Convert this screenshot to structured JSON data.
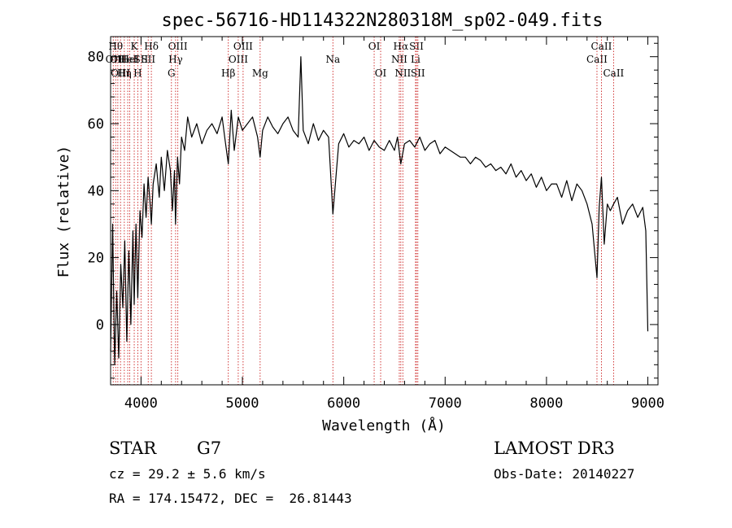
{
  "chart_data": {
    "type": "line",
    "title": "spec-56716-HD114322N280318M_sp02-049.fits",
    "xlabel": "Wavelength (Å)",
    "ylabel": "Flux (relative)",
    "xlim": [
      3700,
      9100
    ],
    "ylim": [
      -18,
      86
    ],
    "x_ticks": [
      4000,
      5000,
      6000,
      7000,
      8000,
      9000
    ],
    "y_ticks": [
      0,
      20,
      40,
      60,
      80
    ],
    "series": [
      {
        "name": "spectrum",
        "x": [
          3700,
          3720,
          3740,
          3760,
          3780,
          3800,
          3820,
          3840,
          3860,
          3880,
          3900,
          3920,
          3933,
          3950,
          3968,
          3990,
          4010,
          4030,
          4050,
          4070,
          4090,
          4102,
          4120,
          4150,
          4180,
          4200,
          4230,
          4260,
          4290,
          4310,
          4330,
          4340,
          4360,
          4380,
          4400,
          4430,
          4460,
          4500,
          4550,
          4600,
          4650,
          4700,
          4750,
          4800,
          4830,
          4861,
          4890,
          4920,
          4960,
          5000,
          5050,
          5100,
          5150,
          5175,
          5200,
          5250,
          5300,
          5350,
          5400,
          5450,
          5500,
          5550,
          5577,
          5600,
          5650,
          5700,
          5750,
          5800,
          5850,
          5893,
          5950,
          6000,
          6050,
          6100,
          6150,
          6200,
          6250,
          6300,
          6350,
          6400,
          6450,
          6500,
          6530,
          6563,
          6600,
          6650,
          6700,
          6750,
          6800,
          6850,
          6900,
          6950,
          7000,
          7050,
          7100,
          7150,
          7200,
          7250,
          7300,
          7350,
          7400,
          7450,
          7500,
          7550,
          7600,
          7650,
          7700,
          7750,
          7800,
          7850,
          7900,
          7950,
          8000,
          8050,
          8100,
          8150,
          8200,
          8250,
          8300,
          8350,
          8400,
          8450,
          8498,
          8520,
          8542,
          8570,
          8600,
          8630,
          8662,
          8700,
          8750,
          8800,
          8850,
          8900,
          8950,
          8980,
          9000
        ],
        "values": [
          -8,
          30,
          -12,
          10,
          -10,
          18,
          5,
          25,
          -5,
          22,
          0,
          28,
          6,
          30,
          8,
          34,
          26,
          42,
          32,
          44,
          36,
          30,
          42,
          48,
          38,
          50,
          40,
          52,
          46,
          34,
          46,
          30,
          50,
          42,
          56,
          52,
          62,
          56,
          60,
          54,
          58,
          60,
          57,
          62,
          55,
          48,
          64,
          52,
          62,
          58,
          60,
          62,
          56,
          50,
          58,
          62,
          59,
          57,
          60,
          62,
          58,
          56,
          80,
          58,
          54,
          60,
          55,
          58,
          56,
          33,
          54,
          57,
          53,
          55,
          54,
          56,
          52,
          55,
          53,
          52,
          55,
          52,
          56,
          48,
          54,
          55,
          53,
          56,
          52,
          54,
          55,
          51,
          53,
          52,
          51,
          50,
          50,
          48,
          50,
          49,
          47,
          48,
          46,
          47,
          45,
          48,
          44,
          46,
          43,
          45,
          41,
          44,
          40,
          42,
          42,
          38,
          43,
          37,
          42,
          40,
          36,
          30,
          14,
          35,
          44,
          24,
          36,
          34,
          36,
          38,
          30,
          34,
          36,
          32,
          35,
          28,
          -2
        ]
      }
    ],
    "line_markers": [
      {
        "wl": 3726,
        "label": "OII",
        "row": 2
      },
      {
        "wl": 3750,
        "label": "Hθ",
        "row": 1
      },
      {
        "wl": 3771,
        "label": "OII",
        "row": 2
      },
      {
        "wl": 3798,
        "label": "OIII",
        "row": 3
      },
      {
        "wl": 3835,
        "label": "Hη",
        "row": 3
      },
      {
        "wl": 3869,
        "label": "HeI",
        "row": 2
      },
      {
        "wl": 3889,
        "label": "HeI",
        "row": 2
      },
      {
        "wl": 3933,
        "label": "K",
        "row": 1
      },
      {
        "wl": 3968,
        "label": "H",
        "row": 3
      },
      {
        "wl": 4000,
        "label": "SII",
        "row": 2
      },
      {
        "wl": 4071,
        "label": "SII",
        "row": 2
      },
      {
        "wl": 4102,
        "label": "Hδ",
        "row": 1
      },
      {
        "wl": 4300,
        "label": "G",
        "row": 3
      },
      {
        "wl": 4341,
        "label": "Hγ",
        "row": 2
      },
      {
        "wl": 4363,
        "label": "OIII",
        "row": 1
      },
      {
        "wl": 4861,
        "label": "Hβ",
        "row": 3
      },
      {
        "wl": 4959,
        "label": "OIII",
        "row": 2
      },
      {
        "wl": 5007,
        "label": "OIII",
        "row": 1
      },
      {
        "wl": 5175,
        "label": "Mg",
        "row": 3
      },
      {
        "wl": 5893,
        "label": "Na",
        "row": 2
      },
      {
        "wl": 6300,
        "label": "OI",
        "row": 1
      },
      {
        "wl": 6364,
        "label": "OI",
        "row": 3
      },
      {
        "wl": 6548,
        "label": "NII",
        "row": 2
      },
      {
        "wl": 6563,
        "label": "Hα",
        "row": 1
      },
      {
        "wl": 6583,
        "label": "NII",
        "row": 3
      },
      {
        "wl": 6708,
        "label": "Li",
        "row": 2
      },
      {
        "wl": 6717,
        "label": "SII",
        "row": 1
      },
      {
        "wl": 6731,
        "label": "SII",
        "row": 3
      },
      {
        "wl": 8498,
        "label": "CaII",
        "row": 2
      },
      {
        "wl": 8542,
        "label": "CaII",
        "row": 1
      },
      {
        "wl": 8662,
        "label": "CaII",
        "row": 3
      }
    ],
    "colors": {
      "line": "#000000",
      "marker": "#cc2222",
      "axis": "#000000"
    }
  },
  "info": {
    "object_class": "STAR",
    "subclass": "G7",
    "redshift": "cz = 29.2 ± 5.6 km/s",
    "coordinates": "RA = 174.15472, DEC =  26.81443",
    "survey": "LAMOST DR3",
    "obs_date": "Obs-Date: 20140227"
  }
}
